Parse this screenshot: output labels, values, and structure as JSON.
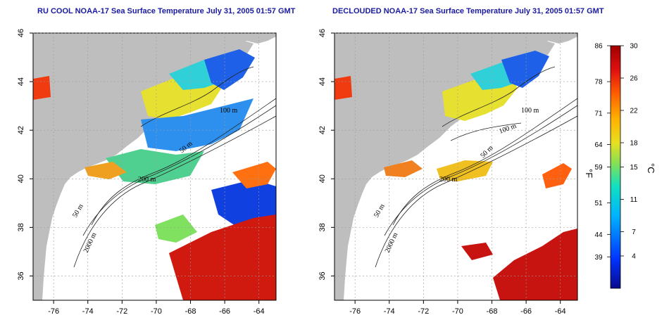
{
  "titles": {
    "left": "RU COOL NOAA-17 Sea Surface Temperature July 31, 2005 01:57 GMT",
    "right": "DECLOUDED NOAA-17 Sea Surface Temperature July 31, 2005 01:57 GMT"
  },
  "axes": {
    "lon_ticks": [
      "-76",
      "-74",
      "-72",
      "-70",
      "-68",
      "-66",
      "-64"
    ],
    "lat_ticks": [
      "46",
      "44",
      "42",
      "40",
      "38",
      "36"
    ],
    "lon_range": [
      -77.2,
      -63.0
    ],
    "lat_range": [
      35.0,
      46.0
    ]
  },
  "contours": {
    "left": [
      "100 m",
      "50 m",
      "200 m",
      "50 m",
      "2000 m"
    ],
    "right": [
      "100 m",
      "100 m",
      "50 m",
      "200 m",
      "50 m",
      "2000 m"
    ]
  },
  "colorbar": {
    "fahrenheit_ticks": [
      "86",
      "78",
      "71",
      "64",
      "59",
      "51",
      "44",
      "39"
    ],
    "celsius_ticks": [
      "30",
      "26",
      "22",
      "18",
      "15",
      "11",
      "7",
      "4"
    ],
    "fahrenheit_unit": "°F",
    "celsius_unit": "°C",
    "range_c": [
      0,
      30
    ]
  },
  "colors": {
    "land": "#bebebe",
    "ocean_cloud": "#ffffff",
    "title": "#1a1aa0"
  }
}
